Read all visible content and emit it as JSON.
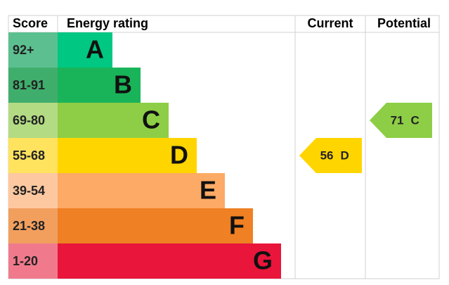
{
  "header": {
    "score": "Score",
    "rating": "Energy rating",
    "current": "Current",
    "potential": "Potential"
  },
  "bands": [
    {
      "score": "92+",
      "letter": "A",
      "color": "#00c781",
      "score_color": "#5cbf90"
    },
    {
      "score": "81-91",
      "letter": "B",
      "color": "#19b459",
      "score_color": "#3fae6c"
    },
    {
      "score": "69-80",
      "letter": "C",
      "color": "#8dce46",
      "score_color": "#b3db83"
    },
    {
      "score": "55-68",
      "letter": "D",
      "color": "#ffd500",
      "score_color": "#ffe35e"
    },
    {
      "score": "39-54",
      "letter": "E",
      "color": "#fcaa65",
      "score_color": "#fdc8a0"
    },
    {
      "score": "21-38",
      "letter": "F",
      "color": "#ef8023",
      "score_color": "#f29f5e"
    },
    {
      "score": "1-20",
      "letter": "G",
      "color": "#e9153b",
      "score_color": "#f07a8c"
    }
  ],
  "current": {
    "value": 56,
    "letter": "D"
  },
  "potential": {
    "value": 71,
    "letter": "C"
  }
}
